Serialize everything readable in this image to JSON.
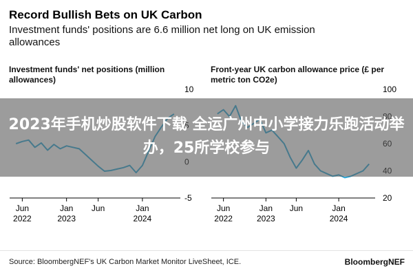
{
  "header": {
    "title": "Record Bullish Bets on UK Carbon",
    "subtitle": "Investment funds' positions are 6.6 million net long on UK emission allowances"
  },
  "overlay": {
    "text": "2023年手机炒股软件下载 全运广州中小学接力乐跑活动举办，25所学校参与"
  },
  "footer": {
    "source": "Source: BloombergNEF's UK Carbon Market Monitor LiveSheet, ICE.",
    "brand": "BloombergNEF"
  },
  "colors": {
    "line": "#2aa7d8",
    "axis": "#000000",
    "grid": "#cccccc",
    "text": "#000000"
  },
  "chart_data": [
    {
      "type": "line",
      "title": "Investment funds' net positions (million allowances)",
      "ylim": [
        -5,
        10
      ],
      "y_ticks": [
        10,
        5,
        0,
        -5
      ],
      "x_ticks": [
        {
          "x": "2022-06",
          "label": [
            "Jun",
            "2022"
          ]
        },
        {
          "x": "2023-01",
          "label": [
            "Jan",
            "2023"
          ]
        },
        {
          "x": "2023-06",
          "label": [
            "Jun",
            ""
          ]
        },
        {
          "x": "2024-01",
          "label": [
            "Jan",
            "2024"
          ]
        }
      ],
      "xlim": [
        "2022-04",
        "2024-07"
      ],
      "grid": false,
      "series": [
        {
          "x": [
            "2022-05",
            "2022-06",
            "2022-07",
            "2022-08",
            "2022-09",
            "2022-10",
            "2022-11",
            "2022-12",
            "2023-01",
            "2023-02",
            "2023-03",
            "2023-04",
            "2023-05",
            "2023-06",
            "2023-07",
            "2023-08",
            "2023-09",
            "2023-10",
            "2023-11",
            "2023-12",
            "2024-01",
            "2024-02",
            "2024-03",
            "2024-04",
            "2024-05",
            "2024-06"
          ],
          "y": [
            2.5,
            2.8,
            3.0,
            2.0,
            2.6,
            1.6,
            2.4,
            1.8,
            2.2,
            2.0,
            1.8,
            1.0,
            0.2,
            -0.6,
            -1.3,
            -1.2,
            -1.0,
            -0.8,
            -0.5,
            -1.5,
            -0.5,
            1.5,
            3.5,
            4.8,
            6.0,
            6.6
          ]
        }
      ]
    },
    {
      "type": "line",
      "title": "Front-year UK carbon allowance price (£ per metric ton CO2e)",
      "ylim": [
        20,
        100
      ],
      "y_ticks": [
        100,
        80,
        60,
        40,
        20
      ],
      "x_ticks": [
        {
          "x": "2022-06",
          "label": [
            "Jun",
            "2022"
          ]
        },
        {
          "x": "2023-01",
          "label": [
            "Jan",
            "2023"
          ]
        },
        {
          "x": "2023-06",
          "label": [
            "Jun",
            ""
          ]
        },
        {
          "x": "2024-01",
          "label": [
            "Jan",
            "2024"
          ]
        }
      ],
      "xlim": [
        "2022-04",
        "2024-07"
      ],
      "grid": false,
      "series": [
        {
          "x": [
            "2022-05",
            "2022-06",
            "2022-07",
            "2022-08",
            "2022-09",
            "2022-10",
            "2022-11",
            "2022-12",
            "2023-01",
            "2023-02",
            "2023-03",
            "2023-04",
            "2023-05",
            "2023-06",
            "2023-07",
            "2023-08",
            "2023-09",
            "2023-10",
            "2023-11",
            "2023-12",
            "2024-01",
            "2024-02",
            "2024-03",
            "2024-04",
            "2024-05",
            "2024-06"
          ],
          "y": [
            82,
            85,
            80,
            88,
            76,
            72,
            75,
            78,
            68,
            70,
            65,
            60,
            50,
            42,
            48,
            55,
            45,
            40,
            38,
            36,
            37,
            35,
            36,
            38,
            40,
            45
          ]
        }
      ]
    }
  ]
}
